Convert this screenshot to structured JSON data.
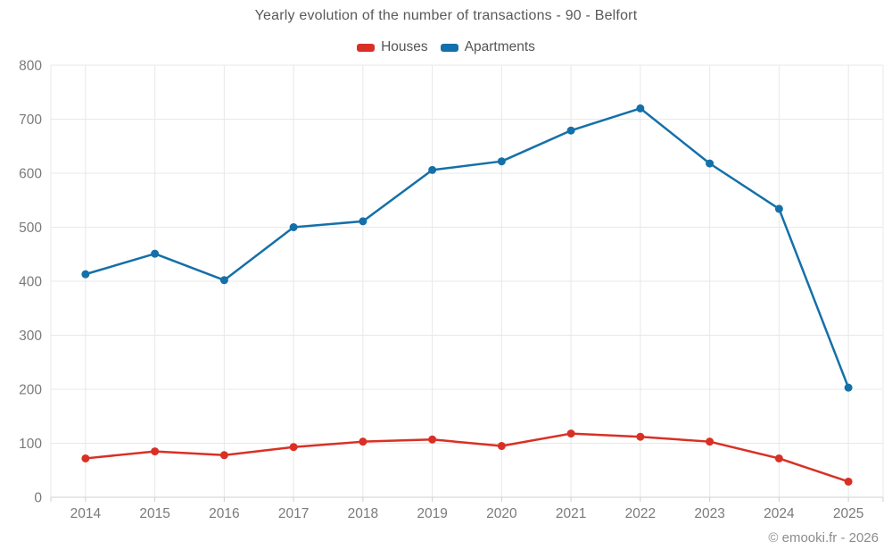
{
  "title": "Yearly evolution of the number of transactions - 90 - Belfort",
  "legend": [
    {
      "label": "Houses",
      "color": "#d93025"
    },
    {
      "label": "Apartments",
      "color": "#1470a8"
    }
  ],
  "footer": "© emooki.fr - 2026",
  "colors": {
    "background": "#ffffff",
    "grid": "#e8e8e8",
    "axis": "#cfcfcf",
    "tick_label": "#7a7a7a",
    "title_text": "#595959",
    "houses_red": "#d93025",
    "apartments_blue": "#1470a8"
  },
  "chart_data": {
    "type": "line",
    "title": "Yearly evolution of the number of transactions - 90 - Belfort",
    "xlabel": "",
    "ylabel": "",
    "categories": [
      "2014",
      "2015",
      "2016",
      "2017",
      "2018",
      "2019",
      "2020",
      "2021",
      "2022",
      "2023",
      "2024",
      "2025"
    ],
    "series": [
      {
        "name": "Houses",
        "color": "#d93025",
        "values": [
          72,
          85,
          78,
          93,
          103,
          107,
          95,
          118,
          112,
          103,
          72,
          29
        ]
      },
      {
        "name": "Apartments",
        "color": "#1470a8",
        "values": [
          413,
          451,
          402,
          500,
          511,
          606,
          622,
          679,
          720,
          618,
          534,
          203
        ]
      }
    ],
    "ylim": [
      0,
      800
    ],
    "ytick_step": 100,
    "grid": true,
    "legend_position": "top",
    "marker": "circle"
  }
}
